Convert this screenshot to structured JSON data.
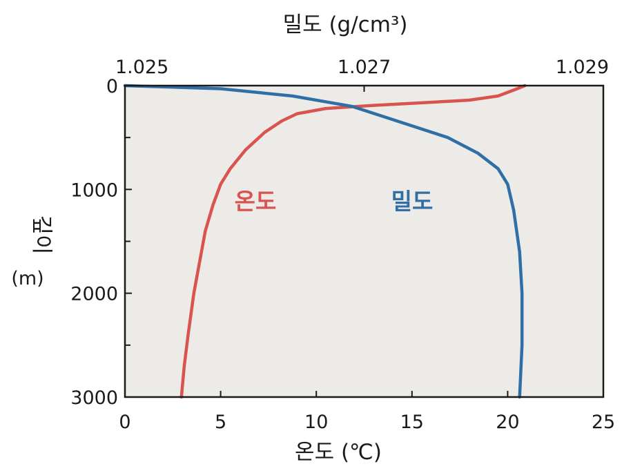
{
  "chart_data": {
    "type": "line",
    "top_axis": {
      "title": "밀도 (g/cm³)",
      "ticks": [
        "1.025",
        "1.027",
        "1.029"
      ],
      "tick_values": [
        1.025,
        1.027,
        1.029
      ],
      "range": [
        1.025,
        1.029
      ]
    },
    "bottom_axis": {
      "title": "온도 (℃)",
      "ticks": [
        "0",
        "5",
        "10",
        "15",
        "20",
        "25"
      ],
      "tick_values": [
        0,
        5,
        10,
        15,
        20,
        25
      ],
      "range": [
        0,
        25
      ]
    },
    "y_axis": {
      "title_main": "깊이",
      "title_unit": "(m)",
      "ticks": [
        "0",
        "1000",
        "2000",
        "3000"
      ],
      "tick_values": [
        0,
        1000,
        2000,
        3000
      ],
      "minor_tick_values": [
        500,
        1500,
        2500
      ],
      "range": [
        0,
        3000
      ],
      "inverted": true
    },
    "grid": false,
    "plot_background": "#ecebe8",
    "series": [
      {
        "name": "온도",
        "axis": "bottom",
        "color": "#d9534f",
        "points": [
          [
            20.9,
            0
          ],
          [
            20.5,
            30
          ],
          [
            19.5,
            100
          ],
          [
            18.0,
            140
          ],
          [
            16.0,
            160
          ],
          [
            13.0,
            190
          ],
          [
            10.5,
            220
          ],
          [
            9.0,
            270
          ],
          [
            8.2,
            340
          ],
          [
            7.3,
            450
          ],
          [
            6.3,
            620
          ],
          [
            5.5,
            800
          ],
          [
            5.0,
            950
          ],
          [
            4.6,
            1150
          ],
          [
            4.2,
            1400
          ],
          [
            3.9,
            1700
          ],
          [
            3.6,
            2000
          ],
          [
            3.3,
            2400
          ],
          [
            3.1,
            2700
          ],
          [
            2.95,
            3000
          ]
        ]
      },
      {
        "name": "밀도",
        "axis": "top",
        "color": "#2f6fa5",
        "points": [
          [
            1.025,
            0
          ],
          [
            1.0258,
            30
          ],
          [
            1.0264,
            100
          ],
          [
            1.0269,
            200
          ],
          [
            1.0273,
            350
          ],
          [
            1.0277,
            500
          ],
          [
            1.02795,
            650
          ],
          [
            1.02812,
            800
          ],
          [
            1.0282,
            950
          ],
          [
            1.02825,
            1200
          ],
          [
            1.0283,
            1600
          ],
          [
            1.02832,
            2000
          ],
          [
            1.02832,
            2500
          ],
          [
            1.0283,
            3000
          ]
        ]
      }
    ]
  }
}
